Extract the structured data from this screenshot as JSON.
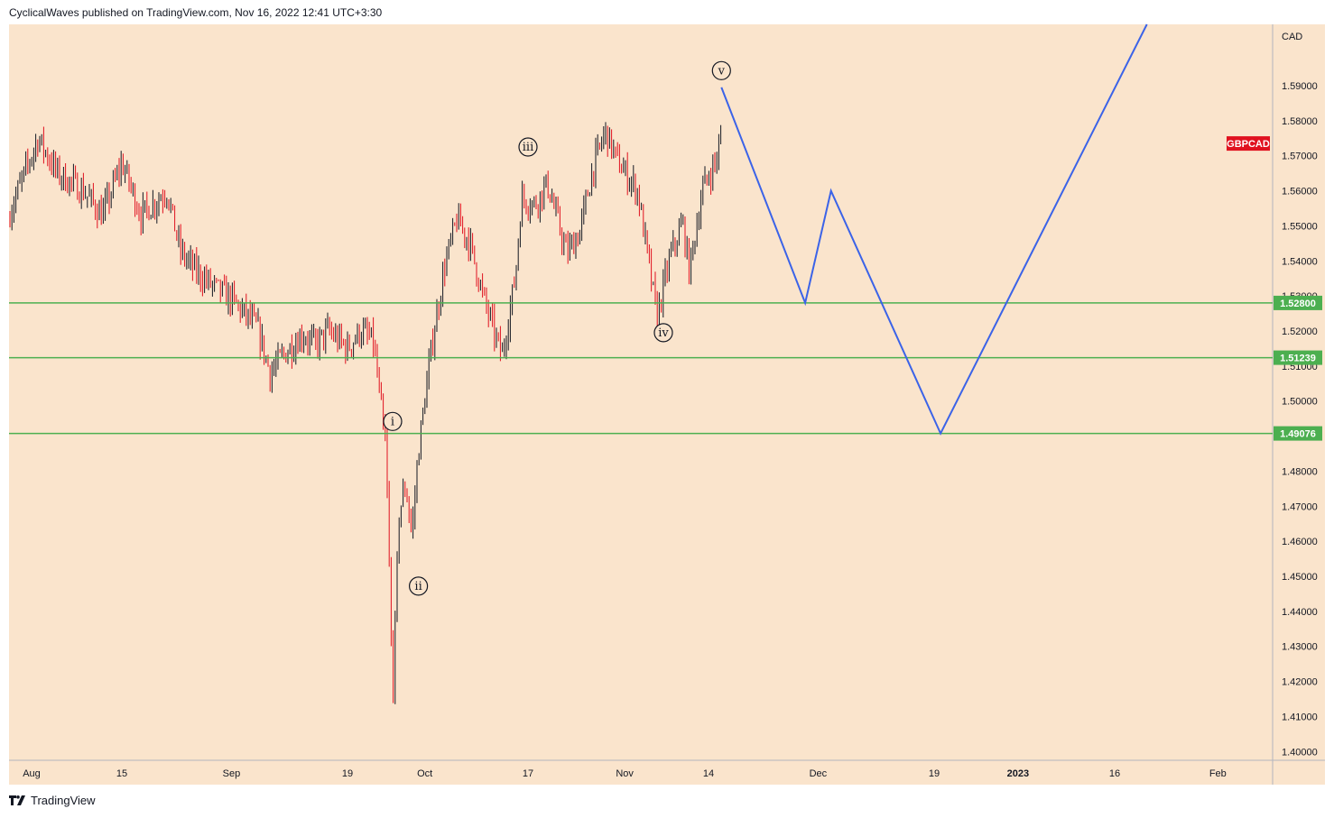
{
  "header": {
    "text": "CyclicalWaves published on TradingView.com, Nov 16, 2022 12:41 UTC+3:30"
  },
  "footer": {
    "brand": "TradingView"
  },
  "colors": {
    "background": "#fae4cc",
    "candle_up": "#131722",
    "candle_down": "#e0111f",
    "support": "#4caf50",
    "projection": "#3b63e8",
    "symbol_badge": "#e0111f"
  },
  "chart_data": {
    "type": "candlestick",
    "symbol": "GBPCAD",
    "currency": "CAD",
    "y_ticks": [
      "1.59000",
      "1.58000",
      "1.57000",
      "1.56000",
      "1.55000",
      "1.54000",
      "1.53000",
      "1.52000",
      "1.51000",
      "1.50000",
      "1.49000",
      "1.48000",
      "1.47000",
      "1.46000",
      "1.45000",
      "1.44000",
      "1.43000",
      "1.42000",
      "1.41000",
      "1.40000"
    ],
    "ylim": [
      1.3975,
      1.6075
    ],
    "x_ticks": [
      {
        "label": "Aug",
        "date": "2022-08-01"
      },
      {
        "label": "15",
        "date": "2022-08-15"
      },
      {
        "label": "Sep",
        "date": "2022-09-01"
      },
      {
        "label": "19",
        "date": "2022-09-19"
      },
      {
        "label": "Oct",
        "date": "2022-10-01"
      },
      {
        "label": "17",
        "date": "2022-10-17"
      },
      {
        "label": "Nov",
        "date": "2022-11-01"
      },
      {
        "label": "14",
        "date": "2022-11-14"
      },
      {
        "label": "Dec",
        "date": "2022-12-01"
      },
      {
        "label": "19",
        "date": "2022-12-19"
      },
      {
        "label": "2023",
        "date": "2023-01-01"
      },
      {
        "label": "16",
        "date": "2023-01-16"
      },
      {
        "label": "Feb",
        "date": "2023-02-01"
      }
    ],
    "price_path": [
      [
        "2022-07-28",
        1.551
      ],
      [
        "2022-08-02",
        1.575
      ],
      [
        "2022-08-05",
        1.565
      ],
      [
        "2022-08-09",
        1.56
      ],
      [
        "2022-08-12",
        1.553
      ],
      [
        "2022-08-15",
        1.568
      ],
      [
        "2022-08-18",
        1.553
      ],
      [
        "2022-08-22",
        1.56
      ],
      [
        "2022-08-24",
        1.543
      ],
      [
        "2022-08-26",
        1.538
      ],
      [
        "2022-08-29",
        1.533
      ],
      [
        "2022-09-01",
        1.529
      ],
      [
        "2022-09-05",
        1.521
      ],
      [
        "2022-09-07",
        1.508
      ],
      [
        "2022-09-09",
        1.513
      ],
      [
        "2022-09-12",
        1.519
      ],
      [
        "2022-09-14",
        1.516
      ],
      [
        "2022-09-16",
        1.52
      ],
      [
        "2022-09-19",
        1.515
      ],
      [
        "2022-09-21",
        1.52
      ],
      [
        "2022-09-23",
        1.517
      ],
      [
        "2022-09-25",
        1.485
      ],
      [
        "2022-09-26",
        1.415
      ],
      [
        "2022-09-27",
        1.468
      ],
      [
        "2022-09-28",
        1.476
      ],
      [
        "2022-09-29",
        1.462
      ],
      [
        "2022-09-30",
        1.486
      ],
      [
        "2022-10-02",
        1.515
      ],
      [
        "2022-10-04",
        1.538
      ],
      [
        "2022-10-06",
        1.552
      ],
      [
        "2022-10-08",
        1.545
      ],
      [
        "2022-10-10",
        1.53
      ],
      [
        "2022-10-12",
        1.518
      ],
      [
        "2022-10-13",
        1.513
      ],
      [
        "2022-10-15",
        1.535
      ],
      [
        "2022-10-16",
        1.558
      ],
      [
        "2022-10-18",
        1.556
      ],
      [
        "2022-10-20",
        1.562
      ],
      [
        "2022-10-23",
        1.542
      ],
      [
        "2022-10-25",
        1.548
      ],
      [
        "2022-10-27",
        1.566
      ],
      [
        "2022-10-29",
        1.577
      ],
      [
        "2022-10-31",
        1.568
      ],
      [
        "2022-11-03",
        1.56
      ],
      [
        "2022-11-04",
        1.548
      ],
      [
        "2022-11-06",
        1.524
      ],
      [
        "2022-11-08",
        1.541
      ],
      [
        "2022-11-10",
        1.551
      ],
      [
        "2022-11-11",
        1.537
      ],
      [
        "2022-11-13",
        1.56
      ],
      [
        "2022-11-15",
        1.568
      ],
      [
        "2022-11-16",
        1.575
      ]
    ],
    "support_levels": [
      {
        "value": 1.528,
        "label": "1.52800"
      },
      {
        "value": 1.51239,
        "label": "1.51239"
      },
      {
        "value": 1.49076,
        "label": "1.49076"
      }
    ],
    "wave_labels": [
      {
        "text": "i",
        "date": "2022-09-26",
        "price": 1.4942
      },
      {
        "text": "ii",
        "date": "2022-09-30",
        "price": 1.4472
      },
      {
        "text": "iii",
        "date": "2022-10-17",
        "price": 1.5725
      },
      {
        "text": "iv",
        "date": "2022-11-07",
        "price": 1.5195
      },
      {
        "text": "v",
        "date": "2022-11-16",
        "price": 1.5943
      }
    ],
    "projection": [
      [
        "2022-11-16",
        1.5895
      ],
      [
        "2022-11-29",
        1.528
      ],
      [
        "2022-12-03",
        1.56
      ],
      [
        "2022-12-20",
        1.49076
      ],
      [
        "2023-01-21",
        1.6075
      ]
    ],
    "last_price_badge": {
      "text": "GBPCAD",
      "price": 1.5735
    }
  }
}
